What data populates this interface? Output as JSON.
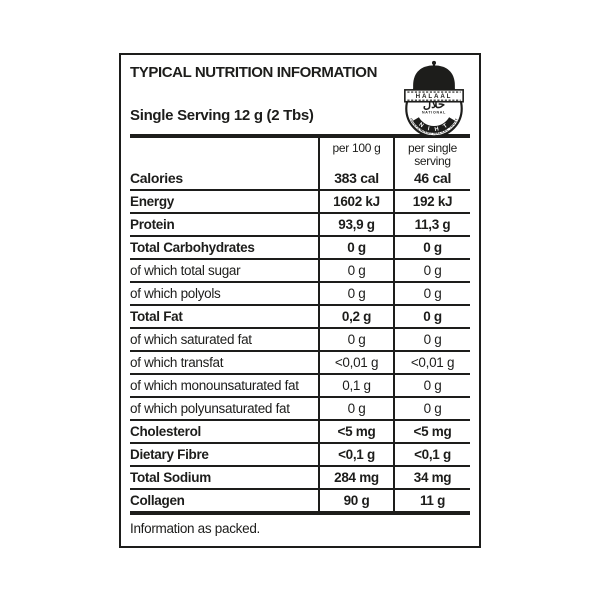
{
  "page": {
    "background": "#ffffff"
  },
  "label": {
    "ink_color": "#1d1d1b",
    "title": "TYPICAL NUTRITION INFORMATION",
    "serving": "Single Serving 12 g (2 Tbs)",
    "footer": "Information as packed.",
    "table": {
      "col_headers": {
        "per100": "per 100 g",
        "per_serving": "per single serving"
      },
      "rows": [
        {
          "name": "Calories",
          "per100": "383 cal",
          "per_serving": "46 cal",
          "bold": true
        },
        {
          "name": "Energy",
          "per100": "1602 kJ",
          "per_serving": "192 kJ",
          "bold": true
        },
        {
          "name": "Protein",
          "per100": "93,9 g",
          "per_serving": "11,3 g",
          "bold": true
        },
        {
          "name": "Total Carbohydrates",
          "per100": "0 g",
          "per_serving": "0 g",
          "bold": true
        },
        {
          "name": "of which total sugar",
          "per100": "0 g",
          "per_serving": "0 g",
          "bold": false
        },
        {
          "name": "of which polyols",
          "per100": "0 g",
          "per_serving": "0 g",
          "bold": false
        },
        {
          "name": "Total Fat",
          "per100": "0,2 g",
          "per_serving": "0 g",
          "bold": true
        },
        {
          "name": "of which saturated fat",
          "per100": "0 g",
          "per_serving": "0 g",
          "bold": false
        },
        {
          "name": "of which transfat",
          "per100": "<0,01 g",
          "per_serving": "<0,01 g",
          "bold": false
        },
        {
          "name": "of which monounsaturated fat",
          "per100": "0,1 g",
          "per_serving": "0 g",
          "bold": false
        },
        {
          "name": "of which polyunsaturated fat",
          "per100": "0 g",
          "per_serving": "0 g",
          "bold": false
        },
        {
          "name": "Cholesterol",
          "per100": "<5 mg",
          "per_serving": "<5 mg",
          "bold": true
        },
        {
          "name": "Dietary Fibre",
          "per100": "<0,1 g",
          "per_serving": "<0,1 g",
          "bold": true
        },
        {
          "name": "Total Sodium",
          "per100": "284 mg",
          "per_serving": "34 mg",
          "bold": true
        },
        {
          "name": "Collagen",
          "per100": "90 g",
          "per_serving": "11 g",
          "bold": true
        }
      ]
    },
    "logo": {
      "banner": "HALAAL",
      "arabic": "حلال",
      "national": "NATIONAL",
      "initials": "N I H T",
      "ring_text": "INDEPENDENT HALAAL TRUST"
    }
  }
}
